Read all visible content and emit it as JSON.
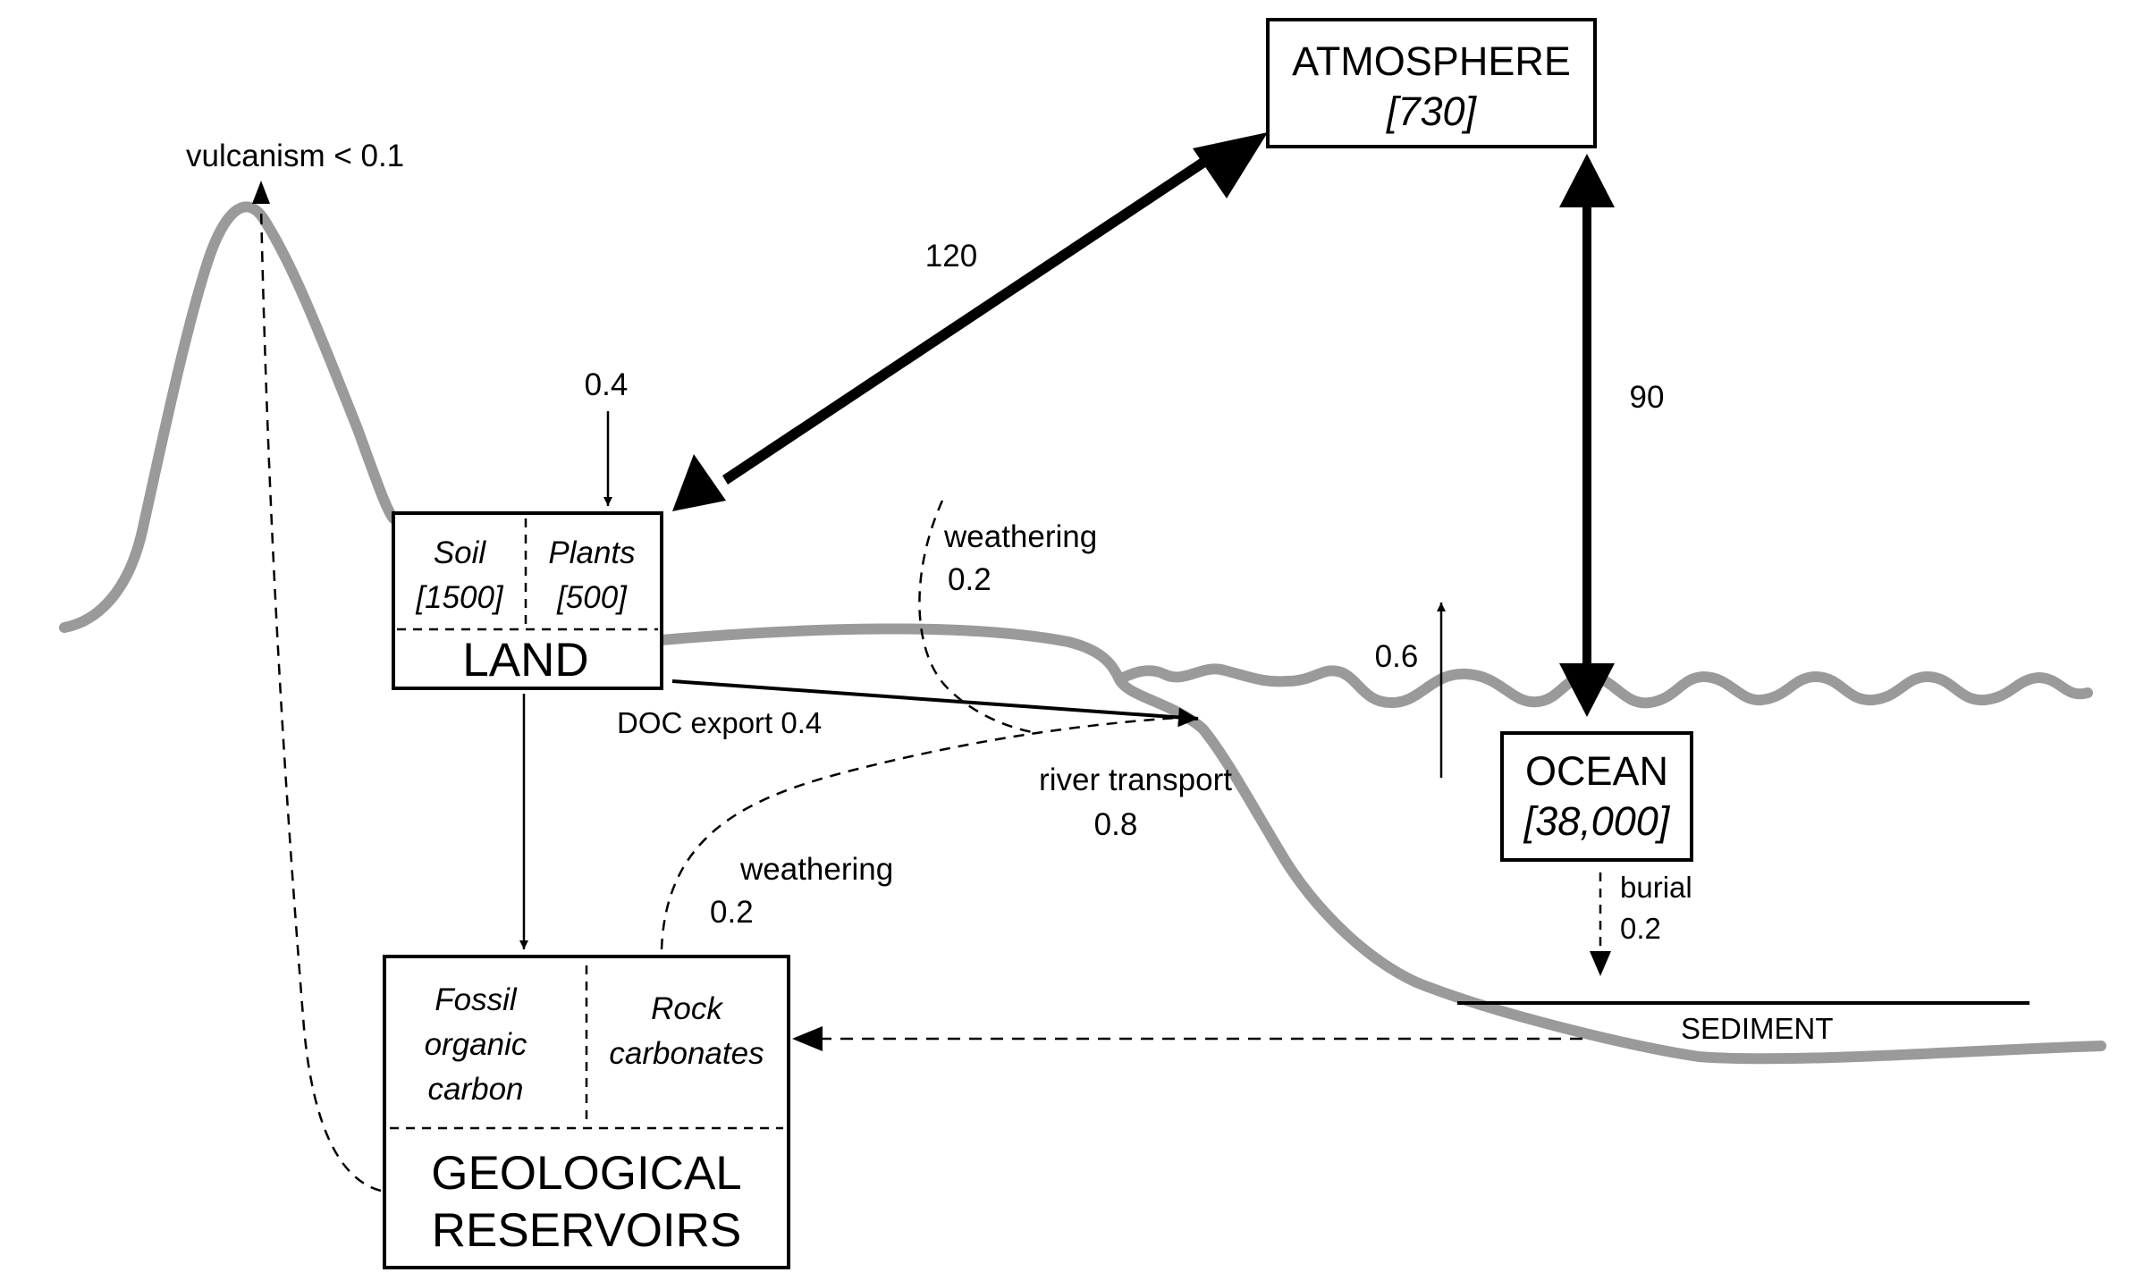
{
  "reservoirs": {
    "atmosphere": {
      "name": "ATMOSPHERE",
      "value": "[730]"
    },
    "ocean": {
      "name": "OCEAN",
      "value": "[38,000]"
    },
    "land": {
      "name": "LAND",
      "soil": {
        "name": "Soil",
        "value": "[1500]"
      },
      "plants": {
        "name": "Plants",
        "value": "[500]"
      }
    },
    "geological": {
      "name_line1": "GEOLOGICAL",
      "name_line2": "RESERVOIRS",
      "fossil": {
        "line1": "Fossil",
        "line2": "organic",
        "line3": "carbon"
      },
      "rock": {
        "line1": "Rock",
        "line2": "carbonates"
      }
    }
  },
  "fluxes": {
    "land_atmosphere": "120",
    "ocean_atmosphere": "90",
    "to_land": "0.4",
    "ocean_up": "0.6",
    "vulcanism": "vulcanism < 0.1",
    "weathering_top": {
      "label": "weathering",
      "value": "0.2"
    },
    "weathering_bottom": {
      "label": "weathering",
      "value": "0.2"
    },
    "doc_export": "DOC export 0.4",
    "river_transport": {
      "label": "river transport",
      "value": "0.8"
    },
    "burial": {
      "label": "burial",
      "value": "0.2"
    }
  },
  "terrain": {
    "sediment_label": "SEDIMENT"
  },
  "colors": {
    "terrain": "#9a9a9a",
    "lines": "#000000",
    "background": "#ffffff"
  }
}
